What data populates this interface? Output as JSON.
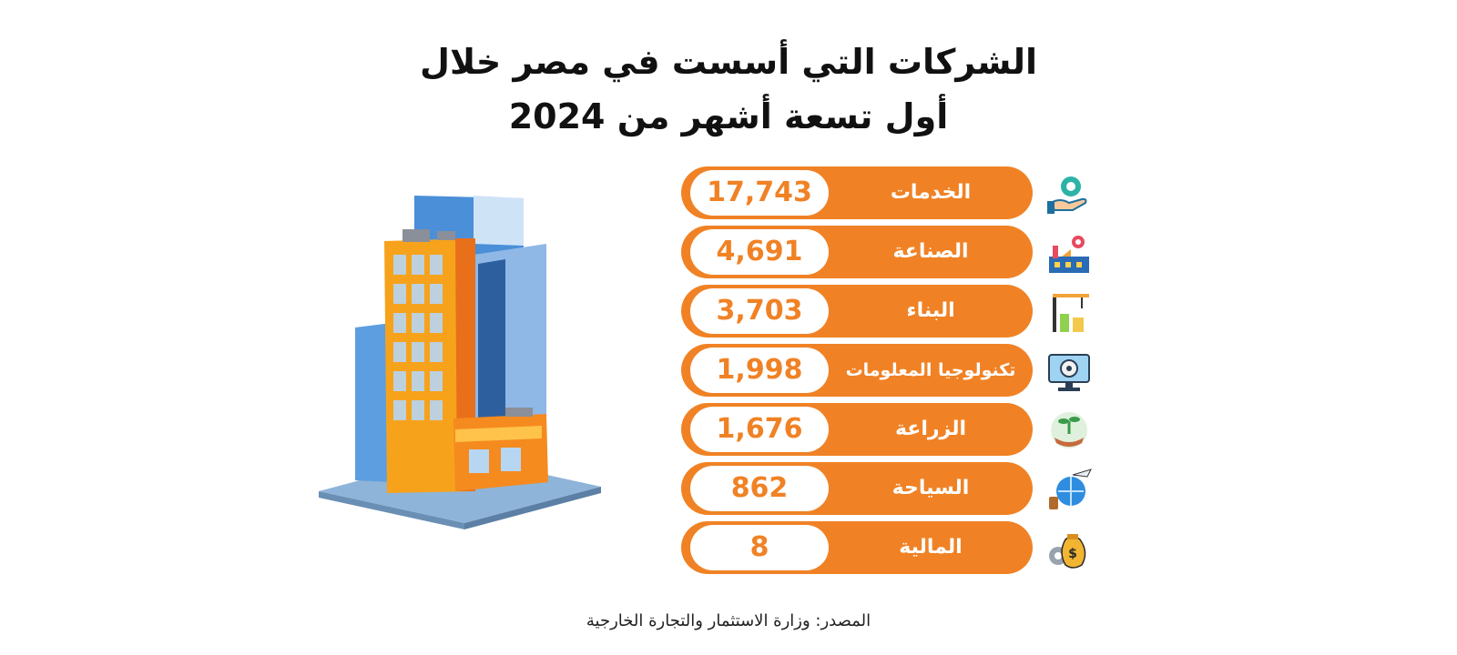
{
  "chart_data": {
    "type": "bar",
    "title_line1": "الشركات التي أسست في مصر خلال",
    "title_line2": "أول تسعة أشهر من 2024",
    "categories": [
      "الخدمات",
      "الصناعة",
      "البناء",
      "تكنولوجيا المعلومات",
      "الزراعة",
      "السياحة",
      "المالية"
    ],
    "values": [
      17743,
      4691,
      3703,
      1998,
      1676,
      862,
      8
    ],
    "value_labels": [
      "17,743",
      "4,691",
      "3,703",
      "1,998",
      "1,676",
      "862",
      "8"
    ],
    "icons": [
      "gear-hand-icon",
      "factory-icon",
      "construction-crane-icon",
      "it-monitor-gear-icon",
      "agriculture-hand-plant-icon",
      "tourism-plane-globe-icon",
      "finance-money-bag-icon"
    ],
    "accent_color": "#f08225"
  },
  "source": "المصدر: وزارة الاستثمار والتجارة الخارجية"
}
